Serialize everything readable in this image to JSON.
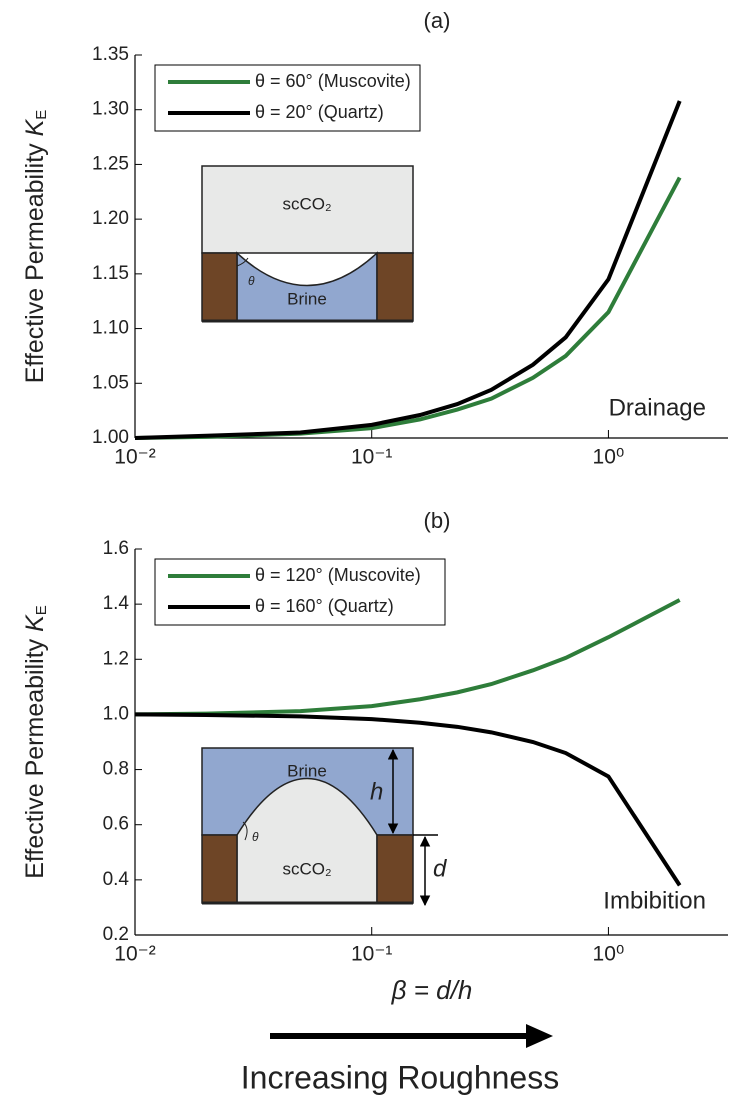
{
  "chart_data": [
    {
      "type": "line",
      "title": "(a)",
      "ylabel": {
        "text": "Effective Permeability ",
        "symbol": "K",
        "subscript": "E"
      },
      "x": [
        0.01,
        0.02,
        0.05,
        0.1,
        0.16,
        0.23,
        0.32,
        0.48,
        0.66,
        1.0,
        2.0
      ],
      "xlim": [
        0.01,
        3.2
      ],
      "log_x": true,
      "xticks": [
        {
          "value": 0.01,
          "label": "10⁻²"
        },
        {
          "value": 0.1,
          "label": "10⁻¹"
        },
        {
          "value": 1,
          "label": "10⁰"
        }
      ],
      "ylim": [
        1,
        1.35
      ],
      "yticks": [
        {
          "value": 1,
          "label": "1.00"
        },
        {
          "value": 1.05,
          "label": "1.05"
        },
        {
          "value": 1.1,
          "label": "1.10"
        },
        {
          "value": 1.15,
          "label": "1.15"
        },
        {
          "value": 1.2,
          "label": "1.20"
        },
        {
          "value": 1.25,
          "label": "1.25"
        },
        {
          "value": 1.3,
          "label": "1.30"
        },
        {
          "value": 1.35,
          "label": "1.35"
        }
      ],
      "legend": "upper left",
      "series": [
        {
          "name": "θ = 60° (Muscovite)",
          "color": "#2e7d3a",
          "values": [
            1.0,
            1.001,
            1.004,
            1.009,
            1.017,
            1.026,
            1.036,
            1.055,
            1.075,
            1.115,
            1.238
          ]
        },
        {
          "name": "θ = 20° (Quartz)",
          "color": "#000000",
          "values": [
            1.0,
            1.002,
            1.005,
            1.012,
            1.021,
            1.031,
            1.044,
            1.067,
            1.092,
            1.145,
            1.308
          ]
        }
      ],
      "annotation": "Drainage",
      "annotation_color": "#e8141b",
      "inset": {
        "top": "scCO₂",
        "bottom": "Brine",
        "angle": "θ"
      }
    },
    {
      "type": "line",
      "title": "(b)",
      "ylabel": {
        "text": "Effective Permeability ",
        "symbol": "K",
        "subscript": "E"
      },
      "x": [
        0.01,
        0.02,
        0.05,
        0.1,
        0.16,
        0.23,
        0.32,
        0.48,
        0.66,
        1.0,
        2.0
      ],
      "xlim": [
        0.01,
        3.2
      ],
      "log_x": true,
      "xticks": [
        {
          "value": 0.01,
          "label": "10⁻²"
        },
        {
          "value": 0.1,
          "label": "10⁻¹"
        },
        {
          "value": 1,
          "label": "10⁰"
        }
      ],
      "ylim": [
        0.2,
        1.6
      ],
      "yticks": [
        0.2,
        0.4,
        0.6,
        0.8,
        {
          "value": 1,
          "label": "1.0"
        },
        1.2,
        1.4,
        1.6
      ],
      "legend": "upper left",
      "series": [
        {
          "name": "θ = 120° (Muscovite)",
          "color": "#2e7d3a",
          "values": [
            1.0,
            1.003,
            1.012,
            1.03,
            1.055,
            1.08,
            1.11,
            1.16,
            1.205,
            1.28,
            1.415
          ]
        },
        {
          "name": "θ = 160° (Quartz)",
          "color": "#000000",
          "values": [
            1.0,
            0.998,
            0.993,
            0.983,
            0.97,
            0.955,
            0.935,
            0.9,
            0.86,
            0.775,
            0.38
          ]
        }
      ],
      "annotation": "Imbibition",
      "annotation_color": "#e8141b",
      "inset": {
        "top": "Brine",
        "bottom": "scCO₂",
        "angle": "θ",
        "height": "h",
        "depth": "d"
      },
      "xlabel": "β = d/h",
      "note": "Increasing Roughness"
    }
  ]
}
